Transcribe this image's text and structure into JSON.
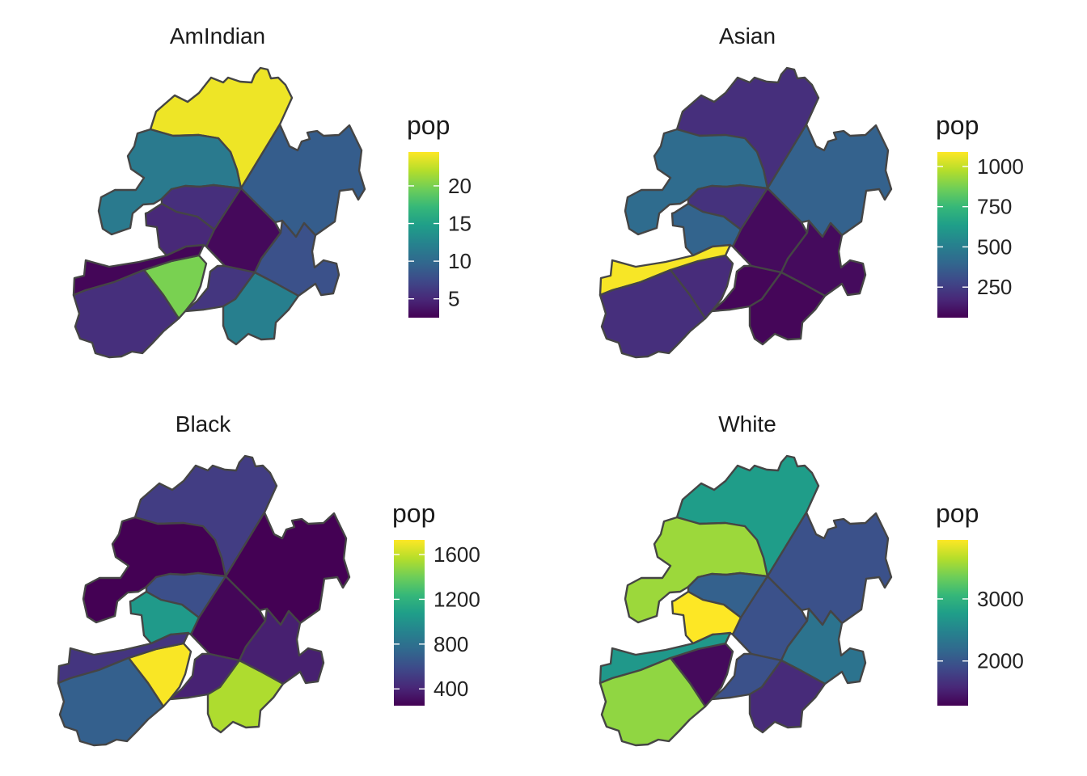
{
  "figure": {
    "panels": [
      {
        "key": "amindian",
        "title": "AmIndian",
        "legend": {
          "title": "pop",
          "min": 2.5,
          "max": 24.5,
          "ticks": [
            5,
            10,
            15,
            20
          ]
        },
        "values": [
          24,
          9,
          11.5,
          5.5,
          5,
          3,
          8,
          6,
          20,
          2.8,
          5.5,
          12
        ]
      },
      {
        "key": "asian",
        "title": "Asian",
        "legend": {
          "title": "pop",
          "min": 60,
          "max": 1090,
          "ticks": [
            250,
            500,
            750,
            1000
          ]
        },
        "values": [
          200,
          380,
          420,
          210,
          390,
          90,
          90,
          75,
          190,
          1080,
          200,
          75
        ]
      },
      {
        "key": "black",
        "title": "Black",
        "legend": {
          "title": "pop",
          "min": 250,
          "max": 1730,
          "ticks": [
            400,
            800,
            1200,
            1600
          ]
        },
        "values": [
          520,
          240,
          250,
          610,
          1050,
          270,
          380,
          390,
          1720,
          480,
          700,
          1550
        ]
      },
      {
        "key": "white",
        "title": "White",
        "legend": {
          "title": "pop",
          "min": 1280,
          "max": 3950,
          "ticks": [
            2000,
            3000
          ]
        },
        "values": [
          2750,
          1950,
          3550,
          2100,
          3950,
          1950,
          2300,
          1950,
          1350,
          2700,
          3500,
          1600
        ]
      }
    ]
  },
  "chart_data": [
    {
      "type": "choropleth",
      "title": "AmIndian",
      "legend_title": "pop",
      "colorscale": "viridis",
      "range": [
        2.5,
        24.5
      ],
      "ticks": [
        5,
        10,
        15,
        20
      ],
      "region_values": [
        24,
        9,
        11.5,
        5.5,
        5,
        3,
        8,
        6,
        20,
        2.8,
        5.5,
        12
      ]
    },
    {
      "type": "choropleth",
      "title": "Asian",
      "legend_title": "pop",
      "colorscale": "viridis",
      "range": [
        60,
        1090
      ],
      "ticks": [
        250,
        500,
        750,
        1000
      ],
      "region_values": [
        200,
        380,
        420,
        210,
        390,
        90,
        90,
        75,
        190,
        1080,
        200,
        75
      ]
    },
    {
      "type": "choropleth",
      "title": "Black",
      "legend_title": "pop",
      "colorscale": "viridis",
      "range": [
        250,
        1730
      ],
      "ticks": [
        400,
        800,
        1200,
        1600
      ],
      "region_values": [
        520,
        240,
        250,
        610,
        1050,
        270,
        380,
        390,
        1720,
        480,
        700,
        1550
      ]
    },
    {
      "type": "choropleth",
      "title": "White",
      "legend_title": "pop",
      "colorscale": "viridis",
      "range": [
        1280,
        3950
      ],
      "ticks": [
        2000,
        3000
      ],
      "region_values": [
        2750,
        1950,
        3550,
        2100,
        3950,
        1950,
        2300,
        1950,
        1350,
        2700,
        3500,
        1600
      ]
    }
  ]
}
